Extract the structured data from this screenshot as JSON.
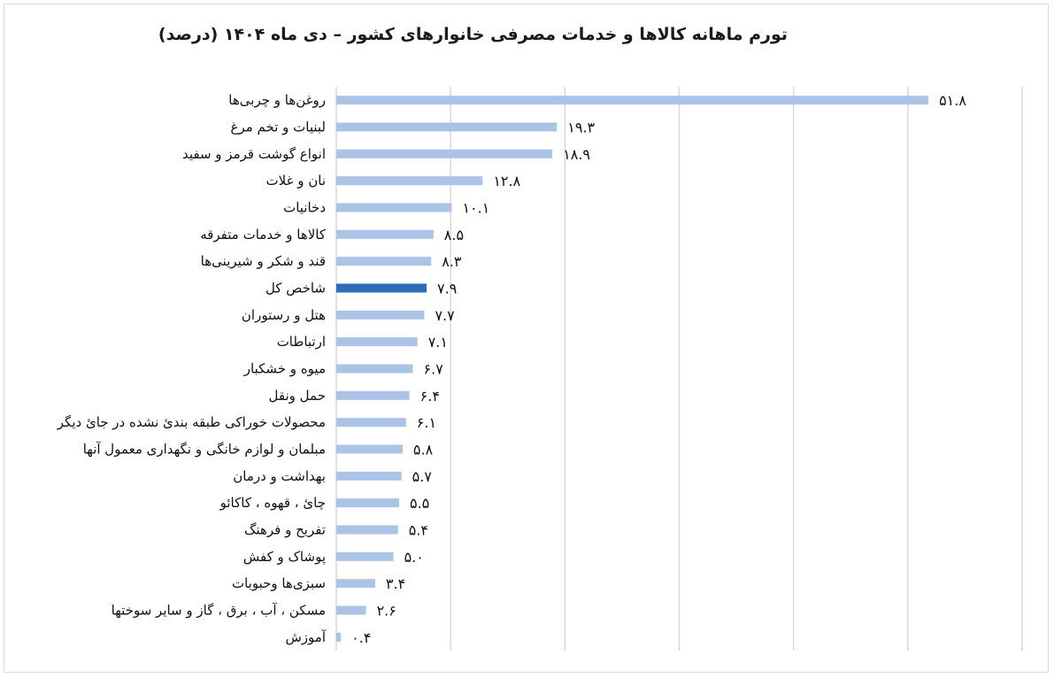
{
  "chart_data": {
    "type": "bar",
    "orientation": "horizontal",
    "title": "تورم ماهانه کالاها و خدمات مصرفی خانوارهای کشور – دی ماه ۱۴۰۴ (درصد)",
    "categories": [
      "روغن‌ها و چربی‌ها",
      "لبنیات و تخم مرغ",
      "انواع گوشت قرمز و سفید",
      "نان و غلات",
      "دخانیات",
      "کالاها و خدمات متفرقه",
      "قند و شکر و شیرینی‌ها",
      "شاخص کل",
      "هتل و رستوران",
      "ارتباطات",
      "میوه و خشکبار",
      "حمل ونقل",
      "محصولات خوراکی طبقه بندیٔ نشده در جایٔ دیگر",
      "مبلمان و لوازم خانگی و نگهداری معمول آنها",
      "بهداشت و درمان",
      "چایٔ ، قهوه ، کاکائو",
      "تفریح و فرهنگ",
      "پوشاک و کفش",
      "سبزی‌ها وحبوبات",
      "مسکن ، آب ، برق ، گاز و سایر سوختها",
      "آموزش"
    ],
    "values": [
      51.8,
      19.3,
      18.9,
      12.8,
      10.1,
      8.5,
      8.3,
      7.9,
      7.7,
      7.1,
      6.7,
      6.4,
      6.1,
      5.8,
      5.7,
      5.5,
      5.4,
      5.0,
      3.4,
      2.6,
      0.4
    ],
    "value_labels": [
      "۵۱.۸",
      "۱۹.۳",
      "۱۸.۹",
      "۱۲.۸",
      "۱۰.۱",
      "۸.۵",
      "۸.۳",
      "۷.۹",
      "۷.۷",
      "۷.۱",
      "۶.۷",
      "۶.۴",
      "۶.۱",
      "۵.۸",
      "۵.۷",
      "۵.۵",
      "۵.۴",
      "۵.۰",
      "۳.۴",
      "۲.۶",
      "۰.۴"
    ],
    "highlight_category": "شاخص کل",
    "xlim": [
      0,
      60
    ],
    "grid": true,
    "legend": "none",
    "colors": {
      "bar": "#a9c4e6",
      "highlight": "#2e6db4",
      "grid": "#d9d9d9"
    }
  }
}
